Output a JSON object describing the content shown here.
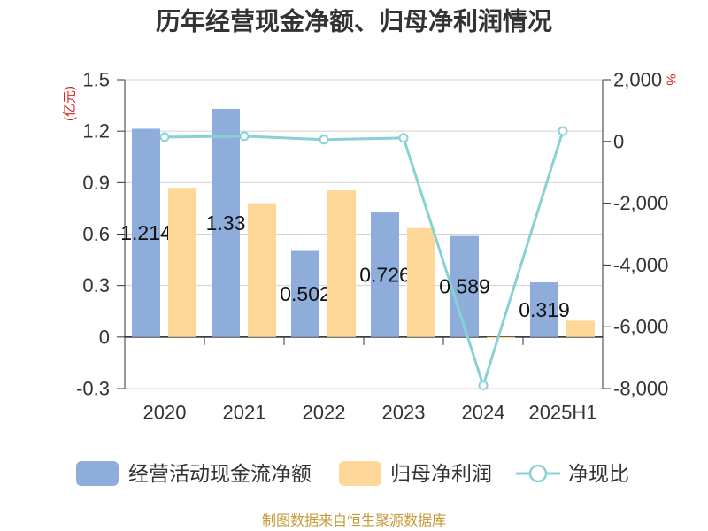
{
  "colors": {
    "operating_cash_flow": "#8eaddb",
    "net_profit": "#fdd898",
    "cash_profit_ratio": "#88d1d5",
    "unit": "#e0201b",
    "footer": "#c59b38"
  },
  "footer": "制图数据来自恒生聚源数据库",
  "chart_data": {
    "type": "bar",
    "title": "历年经营现金净额、归母净利润情况",
    "categories": [
      "2020",
      "2021",
      "2022",
      "2023",
      "2024",
      "2025H1"
    ],
    "series": [
      {
        "name": "经营活动现金流净额",
        "type": "bar",
        "axis": "left",
        "values": [
          1.214,
          1.33,
          0.502,
          0.726,
          0.589,
          0.319
        ],
        "data_labels": [
          "1.214",
          "1.33",
          "0.502",
          "0.726",
          "0.589",
          "0.319"
        ]
      },
      {
        "name": "归母净利润",
        "type": "bar",
        "axis": "left",
        "values": [
          0.87,
          0.78,
          0.855,
          0.635,
          -0.0075,
          0.095
        ]
      },
      {
        "name": "净现比",
        "type": "line",
        "axis": "right",
        "values": [
          140,
          170,
          59,
          114,
          -7900,
          336
        ]
      }
    ],
    "y_left": {
      "label": "(亿元)",
      "ylim": [
        -0.3,
        1.5
      ],
      "ticks": [
        1.5,
        1.2,
        0.9,
        0.6,
        0.3,
        0,
        -0.3
      ],
      "tick_labels": [
        "1.5",
        "1.2",
        "0.9",
        "0.6",
        "0.3",
        "0",
        "-0.3"
      ]
    },
    "y_right": {
      "label": "%",
      "ylim": [
        -8000,
        2000
      ],
      "ticks": [
        2000,
        0,
        -2000,
        -4000,
        -6000,
        -8000
      ],
      "tick_labels": [
        "2,000",
        "0",
        "-2,000",
        "-4,000",
        "-6,000",
        "-8,000"
      ]
    },
    "grid": true,
    "legend": "bottom"
  }
}
